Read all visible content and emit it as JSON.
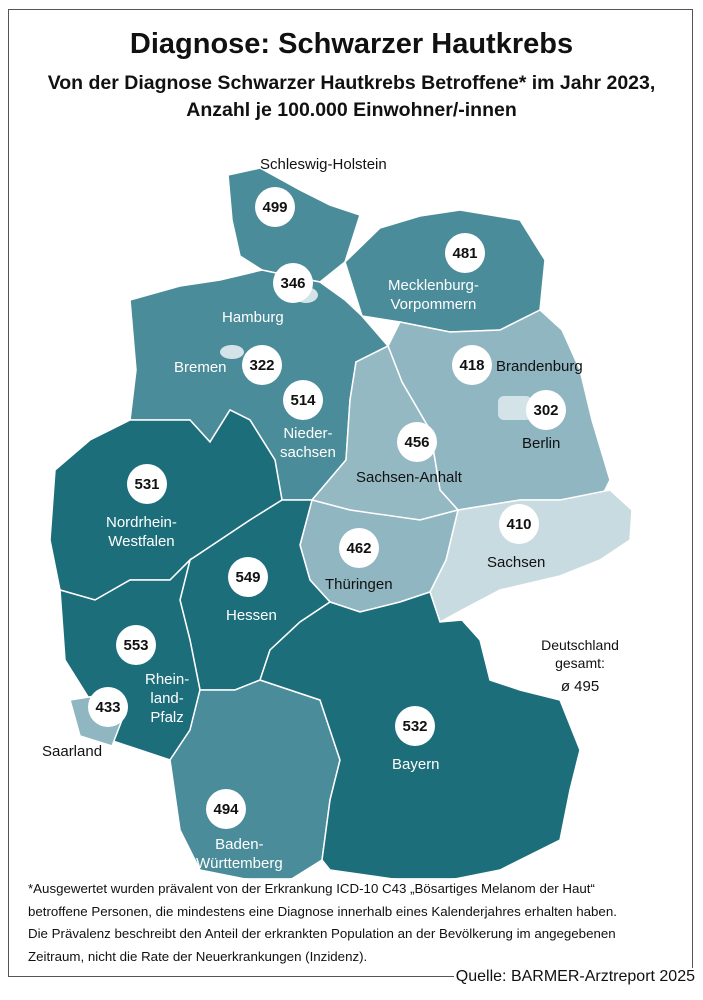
{
  "title": "Diagnose: Schwarzer Hautkrebs",
  "subtitle_line1": "Von der Diagnose Schwarzer Hautkrebs Betroffene* im Jahr 2023,",
  "subtitle_line2": "Anzahl je 100.000 Einwohner/-innen",
  "colors": {
    "dark": "#1d6e7b",
    "medium": "#4a8c99",
    "light": "#8fb6c1",
    "lightest": "#c8dbe1",
    "city": "#d3e3e8"
  },
  "regions": [
    {
      "name": "Schleswig-Holstein",
      "value": "499"
    },
    {
      "name": "Hamburg",
      "value": "346"
    },
    {
      "name": "Mecklenburg-Vorpommern",
      "label1": "Mecklenburg-",
      "label2": "Vorpommern",
      "value": "481"
    },
    {
      "name": "Bremen",
      "value": "322"
    },
    {
      "name": "Niedersachsen",
      "label1": "Nieder-",
      "label2": "sachsen",
      "value": "514"
    },
    {
      "name": "Brandenburg",
      "value": "418"
    },
    {
      "name": "Berlin",
      "value": "302"
    },
    {
      "name": "Sachsen-Anhalt",
      "value": "456"
    },
    {
      "name": "Nordrhein-Westfalen",
      "label1": "Nordrhein-",
      "label2": "Westfalen",
      "value": "531"
    },
    {
      "name": "Sachsen",
      "value": "410"
    },
    {
      "name": "Thüringen",
      "value": "462"
    },
    {
      "name": "Hessen",
      "value": "549"
    },
    {
      "name": "Rheinland-Pfalz",
      "label1": "Rhein-",
      "label2": "land-",
      "label3": "Pfalz",
      "value": "553"
    },
    {
      "name": "Saarland",
      "value": "433"
    },
    {
      "name": "Bayern",
      "value": "532"
    },
    {
      "name": "Baden-Württemberg",
      "label1": "Baden-",
      "label2": "Württemberg",
      "value": "494"
    }
  ],
  "total": {
    "line1": "Deutschland",
    "line2": "gesamt:",
    "value": "ø 495"
  },
  "footnote": [
    "*Ausgewertet wurden prävalent von der Erkrankung ICD-10 C43 „Bösartiges Melanom der Haut“",
    "betroffene Personen, die mindestens eine Diagnose innerhalb eines Kalenderjahres erhalten haben.",
    "Die Prävalenz beschreibt den Anteil der erkrankten Population an der Bevölkerung im angegebenen",
    "Zeitraum, nicht die Rate der Neuerkrankungen (Inzidenz)."
  ],
  "source": "Quelle: BARMER-Arztreport 2025"
}
